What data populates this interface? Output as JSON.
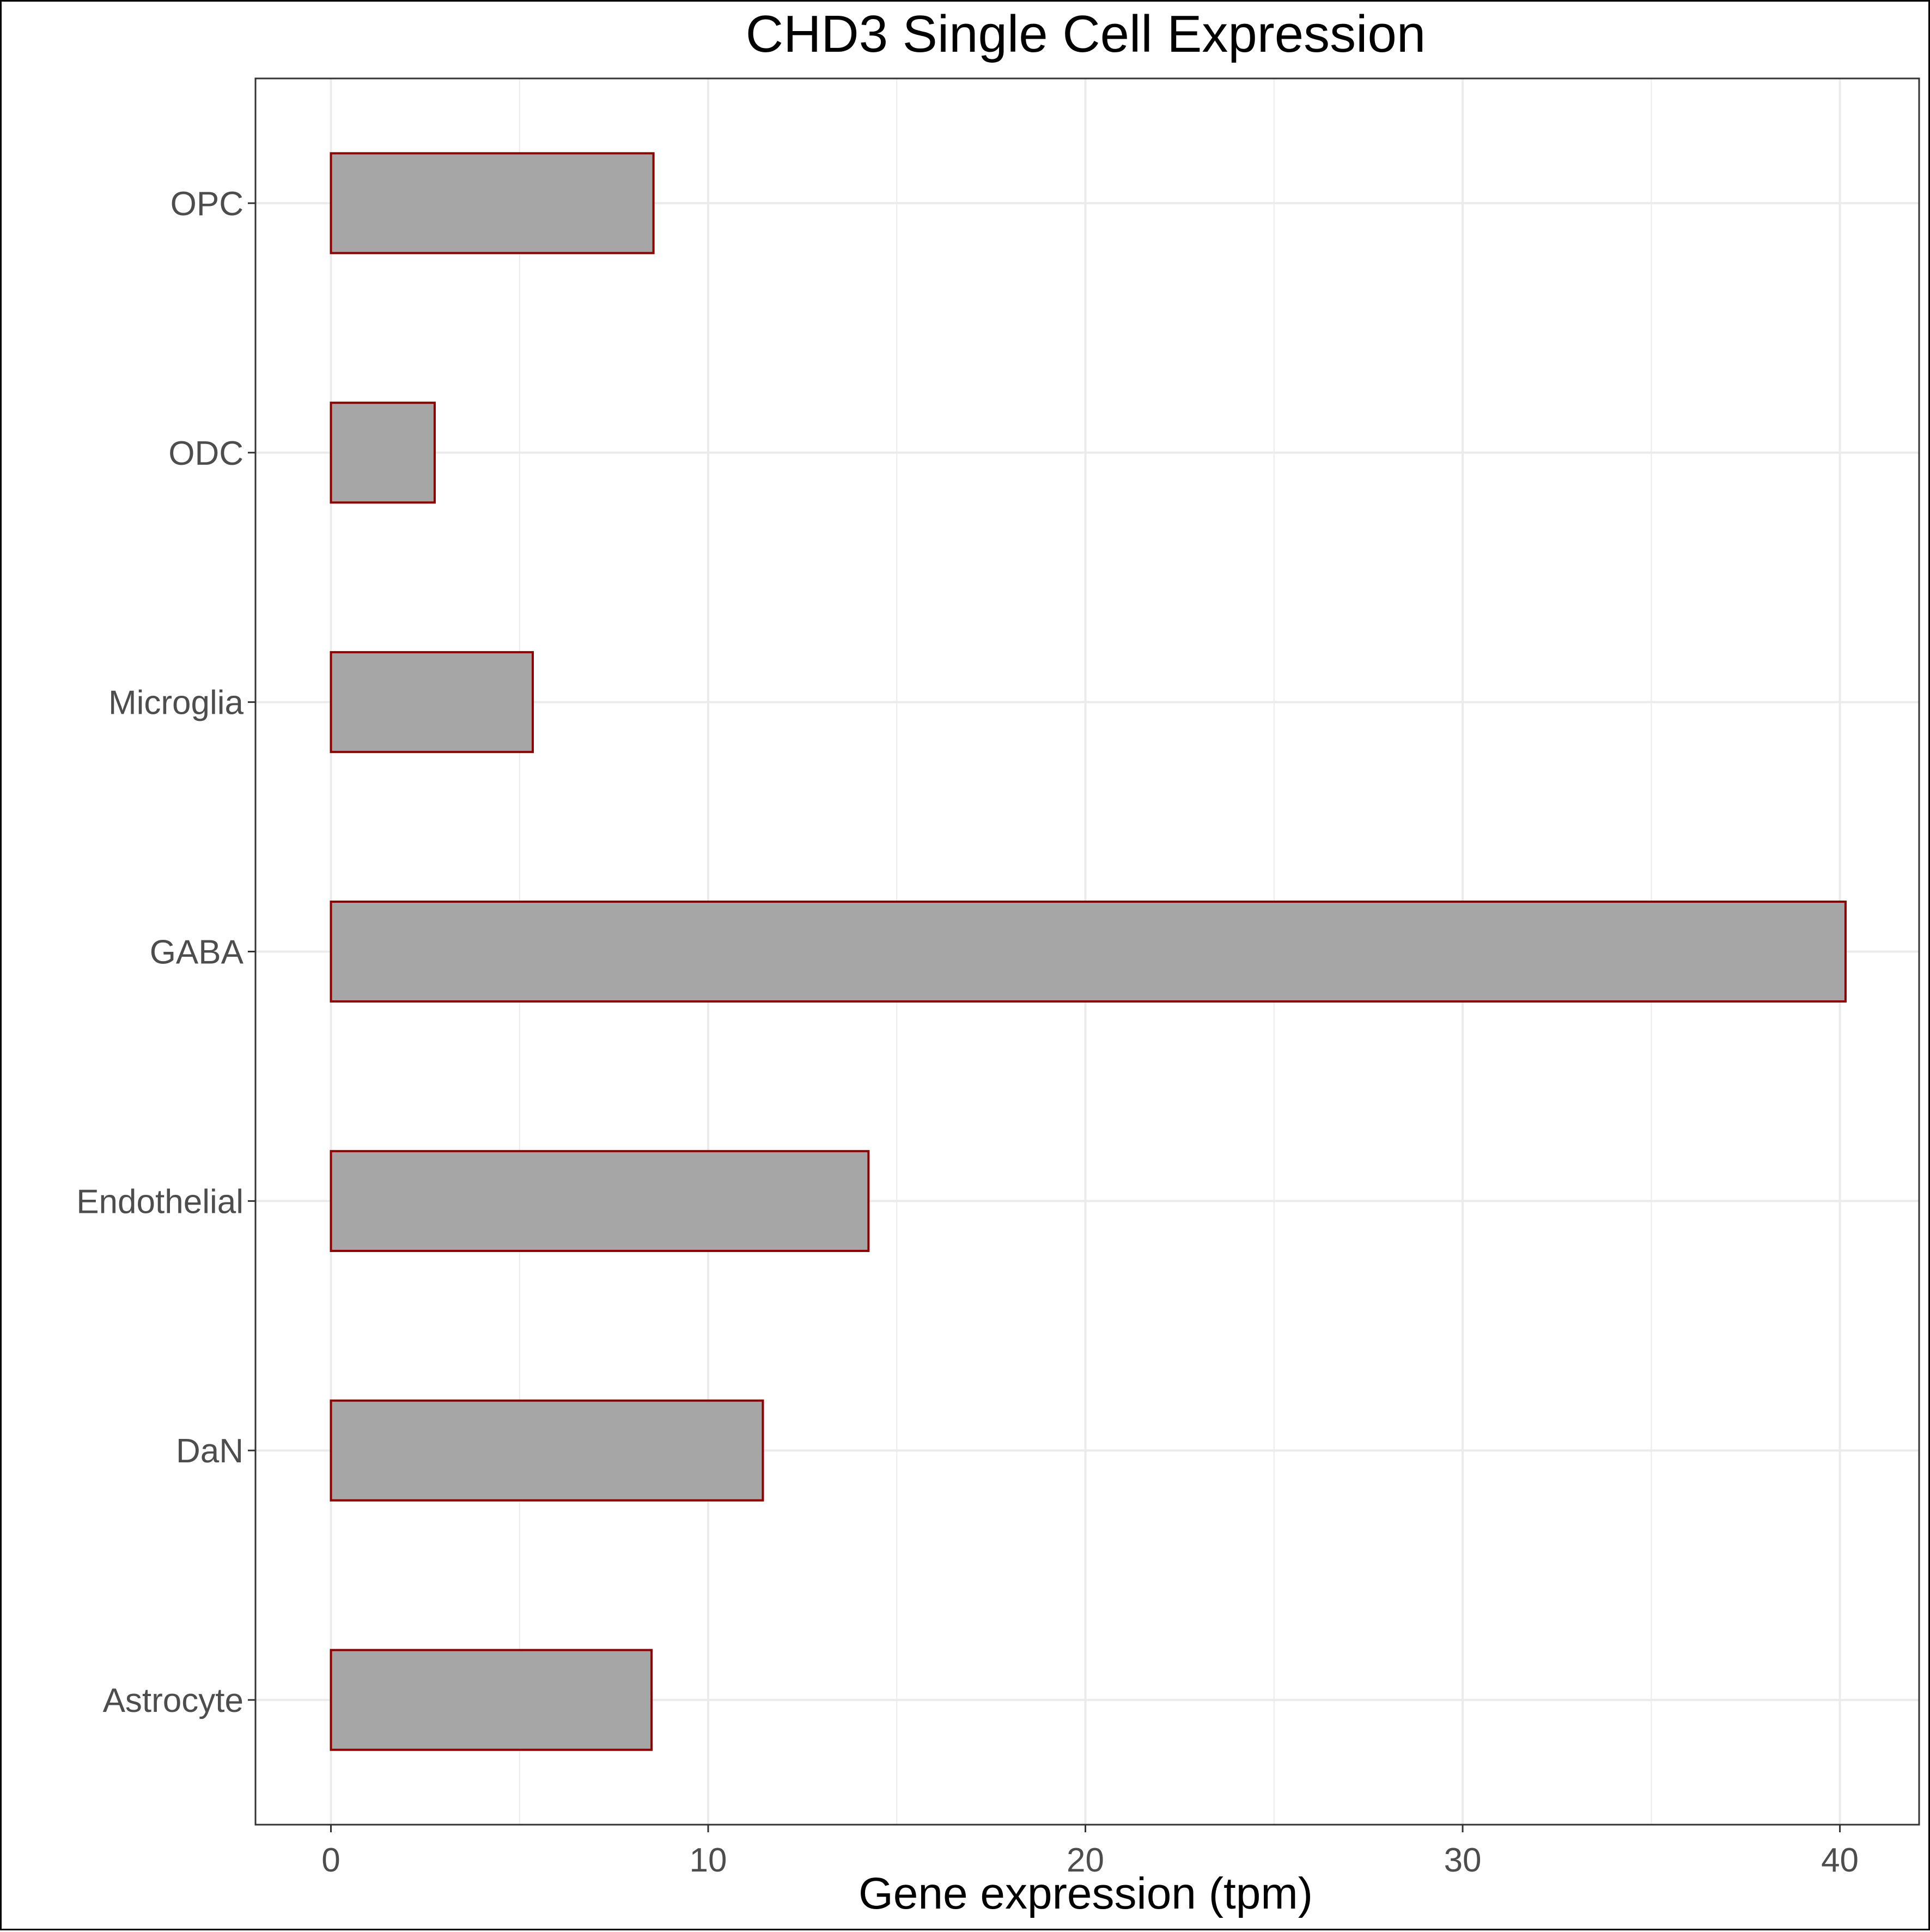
{
  "chart_data": {
    "type": "bar",
    "orientation": "horizontal",
    "title": "CHD3 Single Cell Expression",
    "xlabel": "Gene expression (tpm)",
    "ylabel": "",
    "categories": [
      "Astrocyte",
      "DaN",
      "Endothelial",
      "GABA",
      "Microglia",
      "ODC",
      "OPC"
    ],
    "values": [
      8.5,
      11.45,
      14.25,
      40.15,
      5.35,
      2.75,
      8.55
    ],
    "xlim": [
      -2,
      42.1
    ],
    "xticks": [
      0,
      10,
      20,
      30,
      40
    ],
    "grid": true,
    "legend": "none",
    "colors": {
      "bar_fill": "#a6a6a6",
      "bar_stroke": "#8b0000",
      "grid": "#ebebeb",
      "tick_text": "#4d4d4d",
      "frame": "#333333"
    }
  }
}
